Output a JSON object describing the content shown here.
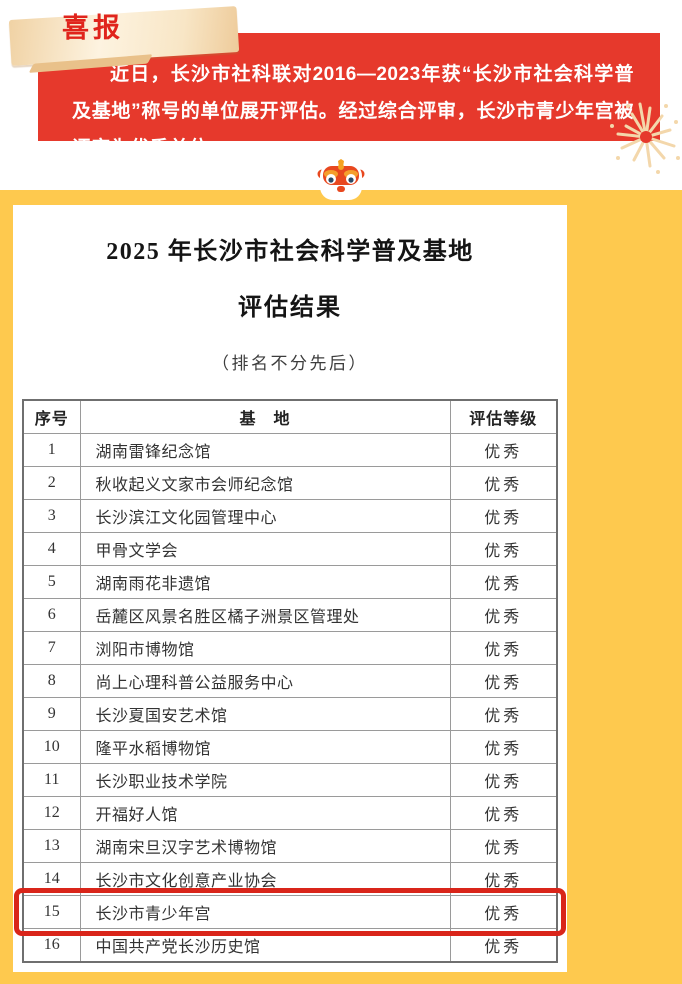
{
  "banner": {
    "badge_label": "喜报",
    "announcement": "近日，长沙市社科联对2016—2023年获“长沙市社会科学普及基地”称号的单位展开评估。经过综合评审，长沙市青少年宫被评定为优秀单位。"
  },
  "card": {
    "title_line1": "2025 年长沙市社会科学普及基地",
    "title_line2": "评估结果",
    "subtitle": "（排名不分先后）"
  },
  "table": {
    "headers": [
      "序号",
      "基　地",
      "评估等级"
    ],
    "highlighted_row": "15",
    "rows": [
      {
        "num": "1",
        "base": "湖南雷锋纪念馆",
        "grade": "优秀"
      },
      {
        "num": "2",
        "base": "秋收起义文家市会师纪念馆",
        "grade": "优秀"
      },
      {
        "num": "3",
        "base": "长沙滨江文化园管理中心",
        "grade": "优秀"
      },
      {
        "num": "4",
        "base": "甲骨文学会",
        "grade": "优秀"
      },
      {
        "num": "5",
        "base": "湖南雨花非遗馆",
        "grade": "优秀"
      },
      {
        "num": "6",
        "base": "岳麓区风景名胜区橘子洲景区管理处",
        "grade": "优秀"
      },
      {
        "num": "7",
        "base": "浏阳市博物馆",
        "grade": "优秀"
      },
      {
        "num": "8",
        "base": "尚上心理科普公益服务中心",
        "grade": "优秀"
      },
      {
        "num": "9",
        "base": "长沙夏国安艺术馆",
        "grade": "优秀"
      },
      {
        "num": "10",
        "base": "隆平水稻博物馆",
        "grade": "优秀"
      },
      {
        "num": "11",
        "base": "长沙职业技术学院",
        "grade": "优秀"
      },
      {
        "num": "12",
        "base": "开福好人馆",
        "grade": "优秀"
      },
      {
        "num": "13",
        "base": "湖南宋旦汉字艺术博物馆",
        "grade": "优秀"
      },
      {
        "num": "14",
        "base": "长沙市文化创意产业协会",
        "grade": "优秀"
      },
      {
        "num": "15",
        "base": "长沙市青少年宫",
        "grade": "优秀"
      },
      {
        "num": "16",
        "base": "中国共产党长沙历史馆",
        "grade": "优秀"
      }
    ]
  },
  "colors": {
    "banner_red": "#e6392c",
    "background_yellow": "#fec94e",
    "badge_cream": "#f8e6c6",
    "highlight_border_red": "#d9251a"
  },
  "icons": {
    "lion": "lion-dance-head",
    "firework": "firework-burst"
  }
}
